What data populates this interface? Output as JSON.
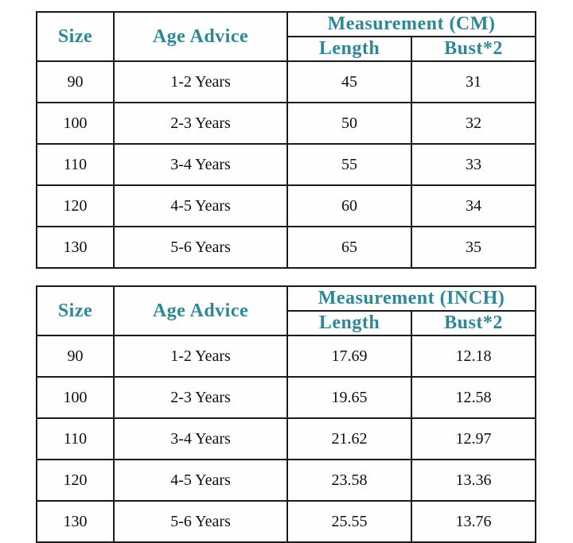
{
  "colors": {
    "accent": "#2e8795",
    "border": "#1b1b1b",
    "data_text": "#0f0f0f"
  },
  "tables": [
    {
      "id": "cm",
      "headers": {
        "size": "Size",
        "age": "Age Advice",
        "measurement": "Measurement (CM)",
        "length": "Length",
        "bust": "Bust*2"
      },
      "rows": [
        [
          "90",
          "1-2 Years",
          "45",
          "31"
        ],
        [
          "100",
          "2-3 Years",
          "50",
          "32"
        ],
        [
          "110",
          "3-4 Years",
          "55",
          "33"
        ],
        [
          "120",
          "4-5 Years",
          "60",
          "34"
        ],
        [
          "130",
          "5-6 Years",
          "65",
          "35"
        ]
      ]
    },
    {
      "id": "inch",
      "headers": {
        "size": "Size",
        "age": "Age Advice",
        "measurement": "Measurement (INCH)",
        "length": "Length",
        "bust": "Bust*2"
      },
      "rows": [
        [
          "90",
          "1-2 Years",
          "17.69",
          "12.18"
        ],
        [
          "100",
          "2-3 Years",
          "19.65",
          "12.58"
        ],
        [
          "110",
          "3-4 Years",
          "21.62",
          "12.97"
        ],
        [
          "120",
          "4-5 Years",
          "23.58",
          "13.36"
        ],
        [
          "130",
          "5-6 Years",
          "25.55",
          "13.76"
        ]
      ]
    }
  ]
}
